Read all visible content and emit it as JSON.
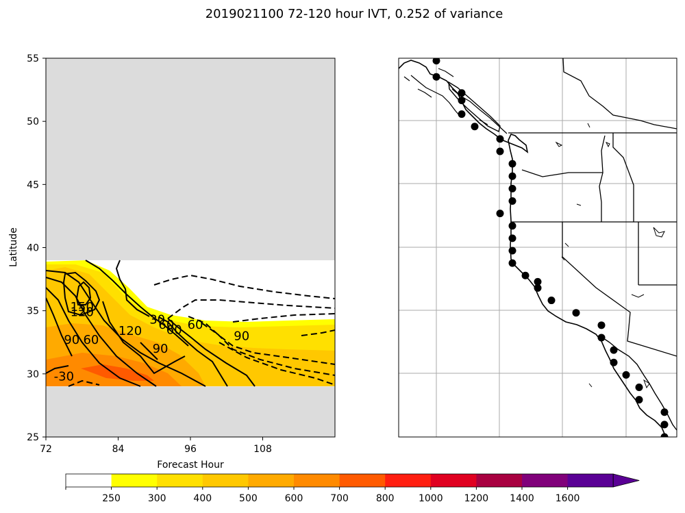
{
  "figure": {
    "title": "2019021100 72-120 hour IVT, 0.252 of variance"
  },
  "chart_data": [
    {
      "type": "contour",
      "xlabel": "Forecast Hour",
      "ylabel": "Latitude",
      "xlim": [
        72,
        120
      ],
      "ylim": [
        25,
        55
      ],
      "xticks": [
        72,
        84,
        96,
        108
      ],
      "yticks": [
        25,
        30,
        35,
        40,
        45,
        50,
        55
      ],
      "data_lat_range": [
        29,
        39
      ],
      "missing_color": "#dcdcdc",
      "contour_labels": [
        {
          "text": "150",
          "x": 78.0,
          "y": 35.3
        },
        {
          "text": "120",
          "x": 78.0,
          "y": 34.9
        },
        {
          "text": "120",
          "x": 86.0,
          "y": 33.4
        },
        {
          "text": "90",
          "x": 76.3,
          "y": 32.7
        },
        {
          "text": "60",
          "x": 79.5,
          "y": 32.7
        },
        {
          "text": "30",
          "x": 90.5,
          "y": 34.3
        },
        {
          "text": "60",
          "x": 92.0,
          "y": 33.9
        },
        {
          "text": "60",
          "x": 93.3,
          "y": 33.5
        },
        {
          "text": "60",
          "x": 96.8,
          "y": 33.9
        },
        {
          "text": "90",
          "x": 104.5,
          "y": 33.0
        },
        {
          "text": "90",
          "x": 91.0,
          "y": 32.0
        },
        {
          "text": "-30",
          "x": 75.0,
          "y": 29.8
        }
      ]
    },
    {
      "type": "map",
      "region": "US West Coast",
      "points_lat": [
        55.3,
        54.0,
        52.7,
        52.1,
        51.0,
        50.0,
        49.0,
        48.0,
        47.0,
        46.0,
        45.0,
        44.0,
        43.0,
        42.0,
        41.0,
        40.0,
        39.0,
        38.0,
        37.5,
        37.0,
        36.0,
        35.0,
        34.0,
        33.0,
        32.0,
        31.0,
        30.0,
        29.0,
        28.0,
        27.0,
        26.0,
        25.0
      ]
    }
  ],
  "colorbar": {
    "ticks": [
      "250",
      "300",
      "400",
      "500",
      "600",
      "700",
      "800",
      "1000",
      "1200",
      "1400",
      "1600"
    ],
    "colors": [
      "#ffffff",
      "#ffff00",
      "#ffe000",
      "#ffc800",
      "#ffaa00",
      "#ff8a00",
      "#ff5a00",
      "#ff1e10",
      "#e00020",
      "#a80040",
      "#80007a",
      "#5a0095"
    ]
  }
}
